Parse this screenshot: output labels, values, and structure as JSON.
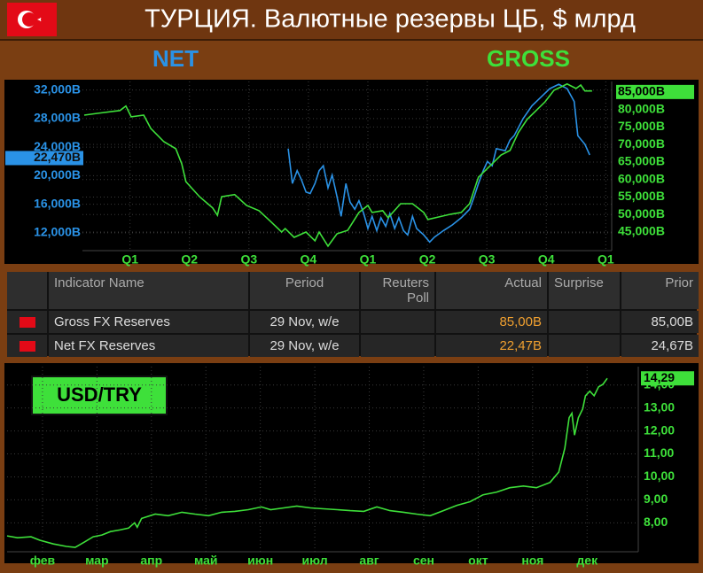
{
  "header": {
    "title": "ТУРЦИЯ. Валютные резервы ЦБ, $ млрд"
  },
  "chart_data": [
    {
      "type": "line",
      "grid": true,
      "xlim": [
        -0.8,
        8.1
      ],
      "xticks": [
        {
          "value": 0,
          "label": "Q1"
        },
        {
          "value": 1,
          "label": "Q2"
        },
        {
          "value": 2,
          "label": "Q3"
        },
        {
          "value": 3,
          "label": "Q4"
        },
        {
          "value": 4,
          "label": "Q1"
        },
        {
          "value": 5,
          "label": "Q2"
        },
        {
          "value": 6,
          "label": "Q3"
        },
        {
          "value": 7,
          "label": "Q4"
        },
        {
          "value": 8,
          "label": "Q1"
        }
      ],
      "ylim": [
        9500,
        33200
      ],
      "yticks": [
        {
          "value": 12000,
          "label": "12,000B"
        },
        {
          "value": 16000,
          "label": "16,000B"
        },
        {
          "value": 20000,
          "label": "20,000B"
        },
        {
          "value": 24000,
          "label": "24,000B"
        },
        {
          "value": 28000,
          "label": "28,000B"
        },
        {
          "value": 32000,
          "label": "32,000B"
        }
      ],
      "y2lim": [
        39700,
        88000
      ],
      "y2ticks": [
        {
          "value": 45000,
          "label": "45,000B"
        },
        {
          "value": 50000,
          "label": "50,000B"
        },
        {
          "value": 55000,
          "label": "55,000B"
        },
        {
          "value": 60000,
          "label": "60,000B"
        },
        {
          "value": 65000,
          "label": "65,000B"
        },
        {
          "value": 70000,
          "label": "70,000B"
        },
        {
          "value": 75000,
          "label": "75,000B"
        },
        {
          "value": 80000,
          "label": "80,000B"
        }
      ],
      "series": [
        {
          "name": "NET",
          "color": "#2a92e6",
          "last_label": {
            "value": 22470,
            "label": "22,470B"
          },
          "x": [
            2.66,
            2.73,
            2.81,
            2.88,
            2.96,
            3.03,
            3.11,
            3.18,
            3.25,
            3.33,
            3.4,
            3.48,
            3.55,
            3.63,
            3.7,
            3.78,
            3.85,
            3.93,
            4.0,
            4.07,
            4.15,
            4.22,
            4.3,
            4.37,
            4.45,
            4.52,
            4.6,
            4.67,
            4.75,
            4.82,
            4.94,
            5.04,
            5.12,
            5.27,
            5.42,
            5.57,
            5.71,
            5.79,
            5.86,
            5.94,
            6.01,
            6.09,
            6.16,
            6.31,
            6.39,
            6.46,
            6.61,
            6.76,
            6.91,
            7.06,
            7.21,
            7.35,
            7.47,
            7.53,
            7.65,
            7.73
          ],
          "values": [
            23800,
            18900,
            20700,
            19500,
            17700,
            17500,
            18900,
            20700,
            21400,
            18300,
            20100,
            17100,
            14300,
            18900,
            16300,
            15300,
            16500,
            14700,
            12600,
            14300,
            12300,
            14100,
            12900,
            14700,
            12600,
            14100,
            12300,
            11700,
            14300,
            12600,
            11700,
            10700,
            11400,
            12300,
            13100,
            14100,
            15300,
            17100,
            18900,
            20700,
            22000,
            21400,
            23800,
            23500,
            25000,
            25600,
            28000,
            29800,
            31000,
            32200,
            32800,
            32200,
            30400,
            25600,
            24400,
            22900
          ]
        },
        {
          "name": "GROSS",
          "color": "#3ee03a",
          "axis": "y2",
          "last_label": {
            "value": 85000,
            "label": "85,000B"
          },
          "x": [
            -0.77,
            -0.55,
            -0.17,
            -0.07,
            0.02,
            0.23,
            0.35,
            0.57,
            0.77,
            0.87,
            0.94,
            1.17,
            1.39,
            1.47,
            1.54,
            1.76,
            1.96,
            2.17,
            2.36,
            2.55,
            2.61,
            2.76,
            2.96,
            3.11,
            3.18,
            3.33,
            3.48,
            3.66,
            3.85,
            4.0,
            4.07,
            4.25,
            4.34,
            4.55,
            4.75,
            4.94,
            5.01,
            5.19,
            5.39,
            5.57,
            5.71,
            5.86,
            6.09,
            6.24,
            6.39,
            6.53,
            6.68,
            6.83,
            6.98,
            7.13,
            7.35,
            7.5,
            7.58,
            7.65,
            7.77
          ],
          "values": [
            78400,
            78900,
            79700,
            81000,
            77900,
            78400,
            74600,
            70800,
            68800,
            64500,
            59400,
            55100,
            51900,
            49800,
            55100,
            55700,
            52600,
            51100,
            48100,
            45000,
            46000,
            43500,
            45000,
            42500,
            45000,
            41000,
            44500,
            45500,
            50600,
            52600,
            50600,
            51100,
            49100,
            53100,
            53100,
            50600,
            48600,
            49300,
            50100,
            50600,
            53100,
            60700,
            64500,
            67000,
            68300,
            73400,
            77200,
            79700,
            82200,
            85500,
            87300,
            86000,
            87000,
            85300,
            85300
          ]
        }
      ]
    },
    {
      "type": "line",
      "title": "USD/TRY",
      "grid": true,
      "xlim": [
        1.35,
        12.94
      ],
      "xticks": [
        {
          "value": 2,
          "label": "фев"
        },
        {
          "value": 3,
          "label": "мар"
        },
        {
          "value": 4,
          "label": "апр"
        },
        {
          "value": 5,
          "label": "май"
        },
        {
          "value": 6,
          "label": "июн"
        },
        {
          "value": 7,
          "label": "июл"
        },
        {
          "value": 8,
          "label": "авг"
        },
        {
          "value": 9,
          "label": "сен"
        },
        {
          "value": 10,
          "label": "окт"
        },
        {
          "value": 11,
          "label": "ноя"
        },
        {
          "value": 12,
          "label": "дек"
        }
      ],
      "ylim": [
        6.74,
        14.8
      ],
      "yticks": [
        {
          "value": 8,
          "label": "8,00"
        },
        {
          "value": 9,
          "label": "9,00"
        },
        {
          "value": 10,
          "label": "10,00"
        },
        {
          "value": 11,
          "label": "11,00"
        },
        {
          "value": 12,
          "label": "12,00"
        },
        {
          "value": 13,
          "label": "13,00"
        },
        {
          "value": 14,
          "label": "14,00"
        }
      ],
      "series": [
        {
          "color": "#3ee03a",
          "last_label": {
            "value": 14.29,
            "label": "14,29"
          },
          "x": [
            1.35,
            1.54,
            1.79,
            1.95,
            2.2,
            2.44,
            2.6,
            2.77,
            2.93,
            3.09,
            3.25,
            3.42,
            3.58,
            3.69,
            3.74,
            3.82,
            4.07,
            4.31,
            4.56,
            4.8,
            5.05,
            5.29,
            5.53,
            5.78,
            6.02,
            6.19,
            6.43,
            6.67,
            6.92,
            7.16,
            7.41,
            7.65,
            7.9,
            8.14,
            8.38,
            8.63,
            8.87,
            9.12,
            9.36,
            9.61,
            9.85,
            10.09,
            10.34,
            10.58,
            10.83,
            11.07,
            11.32,
            11.48,
            11.59,
            11.67,
            11.72,
            11.77,
            11.84,
            11.92,
            11.97,
            12.05,
            12.13,
            12.21,
            12.29,
            12.37
          ],
          "values": [
            7.43,
            7.35,
            7.39,
            7.24,
            7.08,
            6.97,
            6.93,
            7.16,
            7.39,
            7.47,
            7.62,
            7.69,
            7.77,
            8.0,
            7.81,
            8.19,
            8.38,
            8.31,
            8.46,
            8.38,
            8.31,
            8.46,
            8.5,
            8.57,
            8.69,
            8.57,
            8.65,
            8.73,
            8.65,
            8.61,
            8.57,
            8.53,
            8.5,
            8.69,
            8.53,
            8.46,
            8.38,
            8.31,
            8.53,
            8.76,
            8.92,
            9.22,
            9.34,
            9.53,
            9.6,
            9.53,
            9.76,
            10.21,
            11.24,
            12.58,
            12.77,
            11.82,
            12.58,
            12.96,
            13.53,
            13.73,
            13.53,
            13.92,
            14.03,
            14.29
          ]
        }
      ]
    }
  ],
  "table": {
    "columns": [
      "Indicator Name",
      "Period",
      "Reuters Poll",
      "Actual",
      "Surprise",
      "Prior"
    ],
    "rows": [
      [
        "Gross FX Reserves",
        "29 Nov, w/e",
        null,
        "85,00B",
        null,
        "85,00B"
      ],
      [
        "Net FX Reserves",
        "29 Nov, w/e",
        null,
        "22,47B",
        null,
        "24,67B"
      ]
    ]
  }
}
